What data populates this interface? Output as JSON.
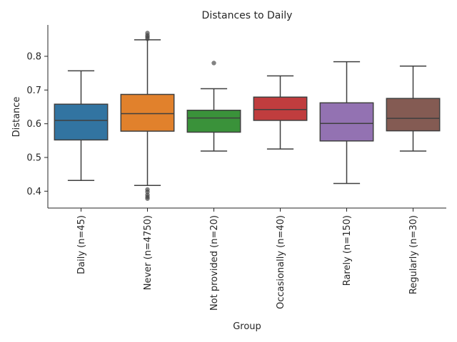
{
  "chart_data": {
    "type": "box",
    "title": "Distances to Daily",
    "xlabel": "Group",
    "ylabel": "Distance",
    "ylim": [
      0.35,
      0.893
    ],
    "yticks": [
      "0.4",
      "0.5",
      "0.6",
      "0.7",
      "0.8"
    ],
    "grid": false,
    "legend": "none",
    "categories": [
      "Daily (n=45)",
      "Never (n=4750)",
      "Not provided (n=20)",
      "Occasionally (n=40)",
      "Rarely (n=150)",
      "Regularly (n=30)"
    ],
    "colors": [
      "#3274a1",
      "#e1812c",
      "#3a923a",
      "#c03d3e",
      "#9372b2",
      "#845b53"
    ],
    "boxes": [
      {
        "whisker_low": 0.432,
        "q1": 0.552,
        "median": 0.61,
        "q3": 0.658,
        "whisker_high": 0.757,
        "outliers": []
      },
      {
        "whisker_low": 0.417,
        "q1": 0.578,
        "median": 0.63,
        "q3": 0.687,
        "whisker_high": 0.849,
        "outliers": [
          0.852,
          0.857,
          0.862,
          0.869,
          0.405,
          0.398,
          0.389,
          0.383,
          0.378
        ]
      },
      {
        "whisker_low": 0.519,
        "q1": 0.575,
        "median": 0.617,
        "q3": 0.64,
        "whisker_high": 0.704,
        "outliers": [
          0.78
        ]
      },
      {
        "whisker_low": 0.525,
        "q1": 0.61,
        "median": 0.642,
        "q3": 0.679,
        "whisker_high": 0.742,
        "outliers": []
      },
      {
        "whisker_low": 0.423,
        "q1": 0.549,
        "median": 0.601,
        "q3": 0.662,
        "whisker_high": 0.784,
        "outliers": []
      },
      {
        "whisker_low": 0.519,
        "q1": 0.579,
        "median": 0.616,
        "q3": 0.675,
        "whisker_high": 0.771,
        "outliers": []
      }
    ]
  }
}
